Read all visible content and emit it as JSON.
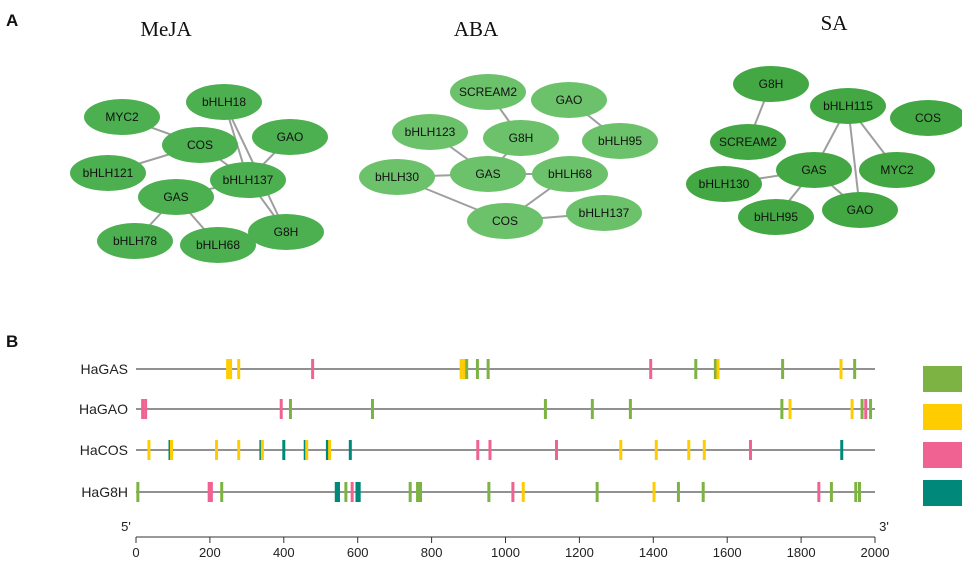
{
  "panel_a": {
    "label": "A",
    "networks": [
      {
        "title": "MeJA",
        "color": "#4caf50",
        "nodes": [
          {
            "id": "MYC2",
            "label": "MYC2"
          },
          {
            "id": "bHLH18",
            "label": "bHLH18"
          },
          {
            "id": "COS",
            "label": "COS"
          },
          {
            "id": "GAO",
            "label": "GAO"
          },
          {
            "id": "bHLH121",
            "label": "bHLH121"
          },
          {
            "id": "bHLH137",
            "label": "bHLH137"
          },
          {
            "id": "GAS",
            "label": "GAS"
          },
          {
            "id": "G8H",
            "label": "G8H"
          },
          {
            "id": "bHLH78",
            "label": "bHLH78"
          },
          {
            "id": "bHLH68",
            "label": "bHLH68"
          }
        ],
        "edges": [
          [
            "MYC2",
            "COS"
          ],
          [
            "COS",
            "bHLH121"
          ],
          [
            "COS",
            "bHLH137"
          ],
          [
            "bHLH18",
            "bHLH137"
          ],
          [
            "bHLH18",
            "G8H"
          ],
          [
            "bHLH137",
            "G8H"
          ],
          [
            "GAO",
            "bHLH137"
          ],
          [
            "GAS",
            "bHLH137"
          ],
          [
            "GAS",
            "bHLH78"
          ],
          [
            "GAS",
            "bHLH68"
          ]
        ]
      },
      {
        "title": "ABA",
        "color": "#6cc16b",
        "nodes": [
          {
            "id": "SCREAM2",
            "label": "SCREAM2"
          },
          {
            "id": "GAO",
            "label": "GAO"
          },
          {
            "id": "bHLH123",
            "label": "bHLH123"
          },
          {
            "id": "G8H",
            "label": "G8H"
          },
          {
            "id": "bHLH95",
            "label": "bHLH95"
          },
          {
            "id": "bHLH30",
            "label": "bHLH30"
          },
          {
            "id": "GAS",
            "label": "GAS"
          },
          {
            "id": "bHLH68",
            "label": "bHLH68"
          },
          {
            "id": "COS",
            "label": "COS"
          },
          {
            "id": "bHLH137",
            "label": "bHLH137"
          }
        ],
        "edges": [
          [
            "SCREAM2",
            "G8H"
          ],
          [
            "GAO",
            "bHLH95"
          ],
          [
            "bHLH123",
            "GAS"
          ],
          [
            "G8H",
            "GAS"
          ],
          [
            "bHLH30",
            "GAS"
          ],
          [
            "GAS",
            "bHLH68"
          ],
          [
            "bHLH30",
            "COS"
          ],
          [
            "COS",
            "bHLH68"
          ],
          [
            "COS",
            "bHLH137"
          ]
        ]
      },
      {
        "title": "SA",
        "color": "#43a843",
        "nodes": [
          {
            "id": "G8H",
            "label": "G8H"
          },
          {
            "id": "bHLH115",
            "label": "bHLH115"
          },
          {
            "id": "COS",
            "label": "COS"
          },
          {
            "id": "SCREAM2",
            "label": "SCREAM2"
          },
          {
            "id": "GAS",
            "label": "GAS"
          },
          {
            "id": "MYC2",
            "label": "MYC2"
          },
          {
            "id": "bHLH130",
            "label": "bHLH130"
          },
          {
            "id": "bHLH95",
            "label": "bHLH95"
          },
          {
            "id": "GAO",
            "label": "GAO"
          }
        ],
        "edges": [
          [
            "G8H",
            "SCREAM2"
          ],
          [
            "bHLH115",
            "GAS"
          ],
          [
            "bHLH115",
            "GAO"
          ],
          [
            "bHLH115",
            "MYC2"
          ],
          [
            "GAS",
            "bHLH130"
          ],
          [
            "GAS",
            "bHLH95"
          ],
          [
            "GAS",
            "GAO"
          ]
        ]
      }
    ]
  },
  "panel_b": {
    "label": "B",
    "motif_colors": [
      "#7cb342",
      "#ffcc00",
      "#f06292",
      "#00897b"
    ],
    "axis": {
      "min": 0,
      "max": 2000,
      "ticks": [
        0,
        200,
        400,
        600,
        800,
        1000,
        1200,
        1400,
        1600,
        1800,
        2000
      ],
      "tick_labels": [
        "0",
        "200",
        "400",
        "600",
        "800",
        "1000",
        "1200",
        "1400",
        "1600",
        "1800",
        "2000"
      ],
      "start_label": "5'",
      "end_label": "3'"
    },
    "genes": [
      {
        "name": "HaGAS",
        "motifs": [
          {
            "pos": 248,
            "type": 1
          },
          {
            "pos": 256,
            "type": 1
          },
          {
            "pos": 278,
            "type": 1
          },
          {
            "pos": 478,
            "type": 2
          },
          {
            "pos": 880,
            "type": 1
          },
          {
            "pos": 888,
            "type": 1
          },
          {
            "pos": 895,
            "type": 0
          },
          {
            "pos": 924,
            "type": 0
          },
          {
            "pos": 953,
            "type": 0
          },
          {
            "pos": 1393,
            "type": 2
          },
          {
            "pos": 1515,
            "type": 0
          },
          {
            "pos": 1568,
            "type": 0
          },
          {
            "pos": 1575,
            "type": 1
          },
          {
            "pos": 1750,
            "type": 0
          },
          {
            "pos": 1908,
            "type": 1
          },
          {
            "pos": 1945,
            "type": 0
          }
        ]
      },
      {
        "name": "HaGAO",
        "motifs": [
          {
            "pos": 18,
            "type": 2
          },
          {
            "pos": 26,
            "type": 2
          },
          {
            "pos": 393,
            "type": 2
          },
          {
            "pos": 418,
            "type": 0
          },
          {
            "pos": 640,
            "type": 0
          },
          {
            "pos": 1108,
            "type": 0
          },
          {
            "pos": 1235,
            "type": 0
          },
          {
            "pos": 1338,
            "type": 0
          },
          {
            "pos": 1748,
            "type": 0
          },
          {
            "pos": 1770,
            "type": 1
          },
          {
            "pos": 1938,
            "type": 1
          },
          {
            "pos": 1965,
            "type": 0
          },
          {
            "pos": 1975,
            "type": 2
          },
          {
            "pos": 1988,
            "type": 0
          }
        ]
      },
      {
        "name": "HaCOS",
        "motifs": [
          {
            "pos": 35,
            "type": 1
          },
          {
            "pos": 92,
            "type": 3
          },
          {
            "pos": 96,
            "type": 1
          },
          {
            "pos": 218,
            "type": 1
          },
          {
            "pos": 278,
            "type": 1
          },
          {
            "pos": 338,
            "type": 3
          },
          {
            "pos": 342,
            "type": 1
          },
          {
            "pos": 400,
            "type": 3
          },
          {
            "pos": 458,
            "type": 3
          },
          {
            "pos": 462,
            "type": 1
          },
          {
            "pos": 518,
            "type": 3
          },
          {
            "pos": 524,
            "type": 1
          },
          {
            "pos": 580,
            "type": 3
          },
          {
            "pos": 925,
            "type": 2
          },
          {
            "pos": 958,
            "type": 2
          },
          {
            "pos": 1138,
            "type": 2
          },
          {
            "pos": 1312,
            "type": 1
          },
          {
            "pos": 1408,
            "type": 1
          },
          {
            "pos": 1496,
            "type": 1
          },
          {
            "pos": 1538,
            "type": 1
          },
          {
            "pos": 1663,
            "type": 2
          },
          {
            "pos": 1910,
            "type": 3
          }
        ]
      },
      {
        "name": "HaG8H",
        "motifs": [
          {
            "pos": 5,
            "type": 0
          },
          {
            "pos": 198,
            "type": 2
          },
          {
            "pos": 204,
            "type": 2
          },
          {
            "pos": 232,
            "type": 0
          },
          {
            "pos": 542,
            "type": 3
          },
          {
            "pos": 548,
            "type": 3
          },
          {
            "pos": 568,
            "type": 0
          },
          {
            "pos": 585,
            "type": 2
          },
          {
            "pos": 598,
            "type": 3
          },
          {
            "pos": 604,
            "type": 3
          },
          {
            "pos": 742,
            "type": 0
          },
          {
            "pos": 762,
            "type": 0
          },
          {
            "pos": 770,
            "type": 0
          },
          {
            "pos": 955,
            "type": 0
          },
          {
            "pos": 1020,
            "type": 2
          },
          {
            "pos": 1048,
            "type": 1
          },
          {
            "pos": 1248,
            "type": 0
          },
          {
            "pos": 1402,
            "type": 1
          },
          {
            "pos": 1468,
            "type": 0
          },
          {
            "pos": 1535,
            "type": 0
          },
          {
            "pos": 1848,
            "type": 2
          },
          {
            "pos": 1882,
            "type": 0
          },
          {
            "pos": 1948,
            "type": 0
          },
          {
            "pos": 1958,
            "type": 0
          }
        ]
      }
    ]
  }
}
